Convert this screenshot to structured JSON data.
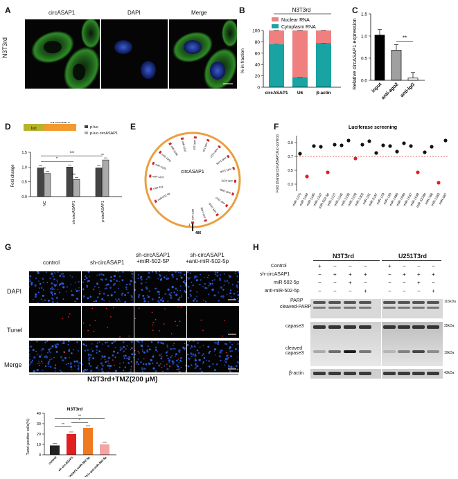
{
  "panel_letters": [
    "A",
    "B",
    "C",
    "D",
    "E",
    "F",
    "G",
    "H"
  ],
  "panelA": {
    "cell_line": "N3T3rd",
    "columns": [
      "circASAP1",
      "DAPI",
      "Merge"
    ]
  },
  "panelB": {
    "title": "N3T3rd",
    "legend": [
      "Nuclear RNA",
      "Cytoplasm RNA"
    ],
    "legend_colors": [
      "#f08080",
      "#1aa3a3"
    ],
    "ylabel": "% in fraction",
    "yticks": [
      "0",
      "20",
      "40",
      "60",
      "80",
      "100"
    ]
  },
  "panelC": {
    "ylabel": "Relative circASAP1 expression",
    "yticks": [
      "0.0",
      "0.5",
      "1.0",
      "1.5"
    ],
    "sig": "**"
  },
  "panelD": {
    "construct_left": "luc",
    "construct_right": "circASAP1",
    "legend": [
      "p-luc",
      "p-luc-circASAP1"
    ],
    "ylabel": "Fold change",
    "yticks": [
      "0.0",
      "0.5",
      "1.0",
      "1.5"
    ],
    "sig_top": "***",
    "sig_mid": "*",
    "bar_sig": [
      "**",
      "***",
      "**"
    ]
  },
  "panelE": {
    "center_label": "circASAP1",
    "length_label": "486",
    "start_label": "1",
    "sites": [
      "miR-502-5p",
      "miR-331",
      "miR-1207",
      "miR-1245",
      "miR-1303",
      "miR-1184",
      "miR-3187",
      "miR-129",
      "miR-130",
      "miR-1227",
      "miR-1228",
      "miR-1236",
      "miR-1275",
      "miR-193b",
      "miR-1537",
      "miR-1538",
      "miR-1466",
      "miR-1185"
    ]
  },
  "panelF": {
    "title": "Luciferase screening",
    "ylabel": "Fold change (circASAP1/luc-control)",
    "yticks": [
      "0.3",
      "0.5",
      "0.7",
      "0.9"
    ],
    "cutoff": 0.7,
    "categories": [
      "miR-1275",
      "miR-1184",
      "miR-1185",
      "miR-1207",
      "miR-502-5p",
      "miR-1227",
      "miR-1245",
      "miR-1236",
      "miR-1228",
      "miR-1303",
      "miR-331",
      "miR-3187",
      "miR-129",
      "miR-130",
      "miR-1466",
      "miR-193b",
      "miR-1537",
      "miR-1538",
      "miR-1228b",
      "miR-766",
      "miR-1283",
      "miR-887"
    ]
  },
  "panelG": {
    "columns": [
      "control",
      "sh-circASAP1",
      "sh-circASAP1\n+miR-502-5P",
      "sh-circASAP1\n+anti-miR-502-5p"
    ],
    "rows": [
      "DAPI",
      "Tunel",
      "Merge"
    ],
    "caption": "N3T3rd+TMZ(200 μM)",
    "bar_title": "N3T3rd",
    "ylabel": "Tunel-positive cells(%)",
    "yticks": [
      "0",
      "10",
      "20",
      "30",
      "40"
    ],
    "sig": [
      "**",
      "*",
      "**"
    ]
  },
  "panelH": {
    "groups": [
      "N3T3rd",
      "U251T3rd"
    ],
    "row_labels": [
      "Control",
      "sh-circASAP1",
      "miR-502-5p",
      "anti-miR-502-5p"
    ],
    "row_signs": [
      [
        "+",
        "−",
        "−",
        "−",
        "+",
        "−",
        "−",
        "−"
      ],
      [
        "−",
        "+",
        "+",
        "+",
        "−",
        "+",
        "+",
        "+"
      ],
      [
        "−",
        "−",
        "+",
        "−",
        "−",
        "−",
        "+",
        "−"
      ],
      [
        "−",
        "−",
        "−",
        "+",
        "−",
        "−",
        "−",
        "+"
      ]
    ],
    "blot_labels": [
      "PARP",
      "cleaved-PARP",
      "capase3",
      "cleaved capase3",
      "β-actin"
    ],
    "sizes": [
      "116kDa",
      "35kDa",
      "19kDa",
      "43kDa"
    ]
  },
  "chart_data": [
    {
      "type": "bar",
      "title": "N3T3rd",
      "categories": [
        "circASAP1",
        "U6",
        "β-actin"
      ],
      "series": [
        {
          "name": "Cytoplasm RNA",
          "values": [
            76,
            18,
            78
          ]
        },
        {
          "name": "Nuclear RNA",
          "values": [
            24,
            82,
            22
          ]
        }
      ],
      "ylabel": "% in fraction",
      "ylim": [
        0,
        100
      ]
    },
    {
      "type": "bar",
      "title": "",
      "categories": [
        "input",
        "anti-ago2",
        "anti-IgG"
      ],
      "values": [
        1.02,
        0.68,
        0.05
      ],
      "ylabel": "Relative circASAP1 expression",
      "ylim": [
        0,
        1.5
      ]
    },
    {
      "type": "bar",
      "title": "",
      "categories": [
        "NC",
        "sh-circASAP1",
        "p-circASAP1"
      ],
      "series": [
        {
          "name": "p-luc",
          "values": [
            0.97,
            1.0,
            0.97
          ]
        },
        {
          "name": "p-luc-circASAP1",
          "values": [
            0.78,
            0.58,
            1.24
          ]
        }
      ],
      "ylabel": "Fold change",
      "ylim": [
        0,
        1.5
      ]
    },
    {
      "type": "scatter",
      "title": "Luciferase screening",
      "categories": [
        "miR-1275",
        "miR-1184",
        "miR-1185",
        "miR-1207",
        "miR-502-5p",
        "miR-1227",
        "miR-1245",
        "miR-1236",
        "miR-1228",
        "miR-1303",
        "miR-331",
        "miR-3187",
        "miR-129",
        "miR-130",
        "miR-1466",
        "miR-193b",
        "miR-1537",
        "miR-1538",
        "miR-1228b",
        "miR-766",
        "miR-1283",
        "miR-887"
      ],
      "values": [
        0.74,
        0.41,
        0.85,
        0.84,
        0.47,
        0.87,
        0.86,
        0.93,
        0.67,
        0.87,
        0.92,
        0.75,
        0.86,
        0.85,
        0.77,
        0.89,
        0.85,
        0.47,
        0.76,
        0.84,
        0.32,
        0.93
      ],
      "ylabel": "Fold change (circASAP1/luc-control)",
      "ylim": [
        0.2,
        1.0
      ]
    },
    {
      "type": "bar",
      "title": "N3T3rd",
      "categories": [
        "control",
        "sh-circASAP1",
        "sh-circASAP1+miR-502-5p",
        "sh-circASAP1+anti-miR-502-5p"
      ],
      "values": [
        9,
        20,
        26,
        10
      ],
      "ylabel": "Tunel-positive cells(%)",
      "ylim": [
        0,
        40
      ]
    }
  ]
}
